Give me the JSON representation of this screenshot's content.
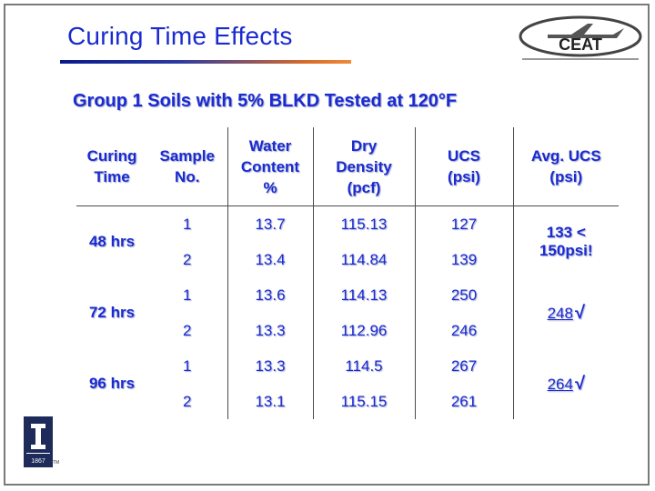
{
  "slide": {
    "title": "Curing Time Effects",
    "subtitle": "Group 1 Soils with 5% BLKD Tested at 120°F",
    "brand_logo_text": "CEAT",
    "university_logo_year": "1867"
  },
  "table": {
    "headers": [
      [
        "Curing",
        "Time"
      ],
      [
        "Sample",
        "No."
      ],
      [
        "Water",
        "Content",
        "%"
      ],
      [
        "Dry",
        "Density",
        "(pcf)"
      ],
      [
        "UCS",
        "(psi)"
      ],
      [
        "Avg. UCS",
        "(psi)"
      ]
    ],
    "groups": [
      {
        "time": "48 hrs",
        "rows": [
          {
            "sample": "1",
            "water": "13.7",
            "dry": "115.13",
            "ucs": "127"
          },
          {
            "sample": "2",
            "water": "13.4",
            "dry": "114.84",
            "ucs": "139"
          }
        ],
        "avg": [
          "133 <",
          "150psi!"
        ]
      },
      {
        "time": "72 hrs",
        "rows": [
          {
            "sample": "1",
            "water": "13.6",
            "dry": "114.13",
            "ucs": "250"
          },
          {
            "sample": "2",
            "water": "13.3",
            "dry": "112.96",
            "ucs": "246"
          }
        ],
        "avg_value": "248",
        "avg_check": "√"
      },
      {
        "time": "96 hrs",
        "rows": [
          {
            "sample": "1",
            "water": "13.3",
            "dry": "114.5",
            "ucs": "267"
          },
          {
            "sample": "2",
            "water": "13.1",
            "dry": "115.15",
            "ucs": "261"
          }
        ],
        "avg_value": "264",
        "avg_check": "√"
      }
    ]
  },
  "colors": {
    "text_blue": "#1a2bd0",
    "underline_dark": "#0a1a8a",
    "underline_orange": "#f08a3a",
    "illinois_navy": "#1e2a5a"
  },
  "icons": [
    "ceat-logo",
    "university-of-illinois-logo",
    "check-icon"
  ]
}
